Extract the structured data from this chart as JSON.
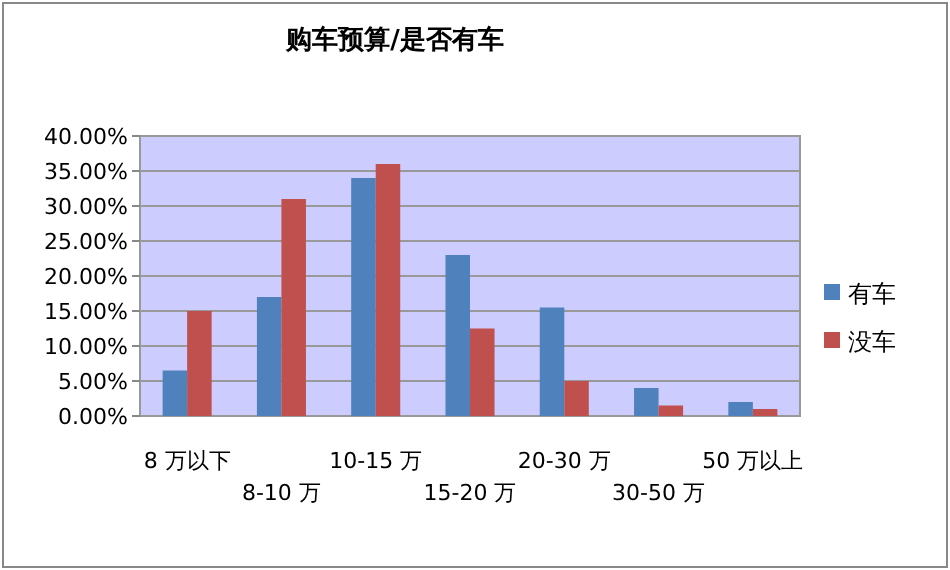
{
  "chart_data": {
    "type": "bar",
    "title": "购车预算/是否有车",
    "categories": [
      "8 万以下",
      "8-10 万",
      "10-15 万",
      "15-20 万",
      "20-30 万",
      "30-50 万",
      "50 万以上"
    ],
    "series": [
      {
        "name": "有车",
        "color": "#4f81bd",
        "values": [
          6.5,
          17,
          34,
          23,
          15.5,
          4,
          2
        ]
      },
      {
        "name": "没车",
        "color": "#c0504d",
        "values": [
          15,
          31,
          36,
          12.5,
          5,
          1.5,
          1
        ]
      }
    ],
    "ylim": [
      0,
      40
    ],
    "yticks": [
      {
        "value": 0,
        "label": "0.00%"
      },
      {
        "value": 5,
        "label": "5.00%"
      },
      {
        "value": 10,
        "label": "10.00%"
      },
      {
        "value": 15,
        "label": "15.00%"
      },
      {
        "value": 20,
        "label": "20.00%"
      },
      {
        "value": 25,
        "label": "25.00%"
      },
      {
        "value": 30,
        "label": "30.00%"
      },
      {
        "value": 35,
        "label": "35.00%"
      },
      {
        "value": 40,
        "label": "40.00%"
      }
    ],
    "grid": "y",
    "legend": "right"
  }
}
